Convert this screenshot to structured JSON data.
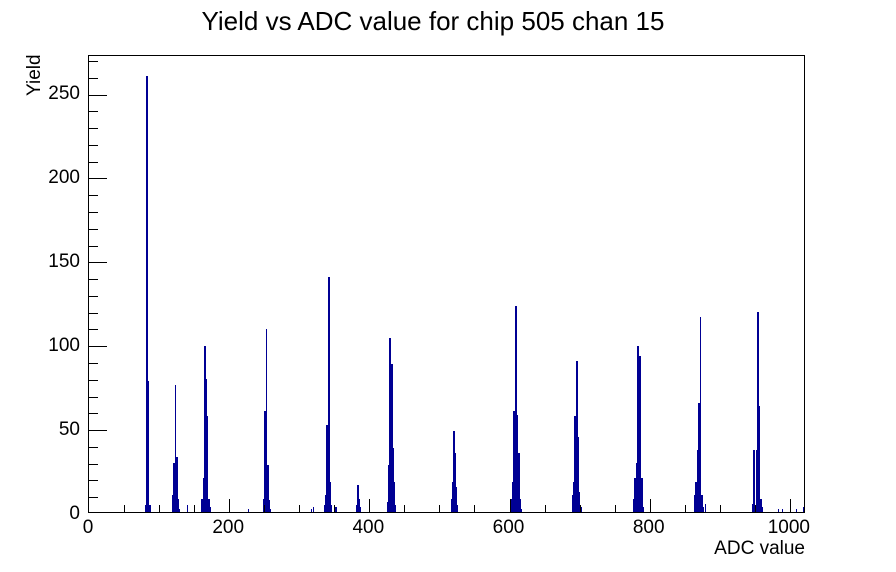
{
  "chart_data": {
    "type": "histogram",
    "title": "Yield vs ADC value for chip 505 chan 15",
    "xlabel": "ADC value",
    "ylabel": "Yield",
    "xlim": [
      0,
      1023
    ],
    "ylim": [
      0,
      273
    ],
    "x_major_ticks": [
      0,
      200,
      400,
      600,
      800,
      1000
    ],
    "x_minor_step": 50,
    "y_major_ticks": [
      0,
      50,
      100,
      150,
      200,
      250
    ],
    "y_minor_step": 10,
    "grid": false,
    "legend": "none",
    "line_color": "#000094",
    "frame_color": "#000000",
    "background_color": "#ffffff",
    "bars_format": "[adc_center, yield, width_in_adc]",
    "bars": [
      [
        80.5,
        4,
        2
      ],
      [
        82.5,
        260,
        2.5
      ],
      [
        85,
        78,
        2.5
      ],
      [
        87.3,
        4,
        2
      ],
      [
        100,
        3,
        1.5
      ],
      [
        119.5,
        10,
        2
      ],
      [
        121.5,
        29,
        2
      ],
      [
        123.3,
        76,
        2.5
      ],
      [
        125.3,
        33,
        2.2
      ],
      [
        127,
        8,
        2
      ],
      [
        128.8,
        2,
        1.5
      ],
      [
        141,
        4,
        1.5
      ],
      [
        161.5,
        8,
        2
      ],
      [
        163.2,
        20,
        2
      ],
      [
        165,
        99,
        2.5
      ],
      [
        167.2,
        79,
        2.5
      ],
      [
        169.3,
        57,
        2.2
      ],
      [
        171,
        8,
        2
      ],
      [
        172.8,
        3,
        1.5
      ],
      [
        228,
        2,
        1.5
      ],
      [
        249.5,
        8,
        2
      ],
      [
        251.3,
        60,
        2.5
      ],
      [
        253.4,
        109,
        2.5
      ],
      [
        255.5,
        28,
        2.2
      ],
      [
        257.3,
        7,
        2
      ],
      [
        259,
        2,
        1.5
      ],
      [
        317,
        2,
        1.5
      ],
      [
        320.5,
        3,
        1.5
      ],
      [
        336.5,
        4,
        2
      ],
      [
        338.2,
        10,
        2
      ],
      [
        340.1,
        52,
        2.5
      ],
      [
        342.2,
        140,
        2.5
      ],
      [
        344.4,
        18,
        2.2
      ],
      [
        346.2,
        4,
        2
      ],
      [
        352.5,
        3,
        1.8
      ],
      [
        382,
        4,
        1.8
      ],
      [
        383.8,
        16,
        2
      ],
      [
        385.6,
        8,
        2
      ],
      [
        387.4,
        3,
        1.8
      ],
      [
        426,
        6,
        2
      ],
      [
        427.9,
        28,
        2.2
      ],
      [
        429.9,
        104,
        2.5
      ],
      [
        432.1,
        88,
        2.5
      ],
      [
        434.1,
        38,
        2.2
      ],
      [
        435.9,
        18,
        2
      ],
      [
        437.7,
        4,
        1.8
      ],
      [
        517,
        8,
        2
      ],
      [
        518.8,
        18,
        2
      ],
      [
        520.7,
        48,
        2.4
      ],
      [
        522.7,
        35,
        2.2
      ],
      [
        524.5,
        15,
        2
      ],
      [
        526.2,
        4,
        1.8
      ],
      [
        603,
        8,
        2
      ],
      [
        604.8,
        18,
        2
      ],
      [
        606.8,
        60,
        2.5
      ],
      [
        609,
        123,
        2.5
      ],
      [
        611.2,
        58,
        2.5
      ],
      [
        613.3,
        35,
        2.2
      ],
      [
        615.1,
        8,
        2
      ],
      [
        616.9,
        2,
        1.5
      ],
      [
        690,
        10,
        2
      ],
      [
        691.8,
        18,
        2
      ],
      [
        693.8,
        57,
        2.5
      ],
      [
        696,
        90,
        2.5
      ],
      [
        698.2,
        45,
        2.4
      ],
      [
        700.2,
        12,
        2
      ],
      [
        702,
        3,
        1.5
      ],
      [
        777.5,
        8,
        2
      ],
      [
        779.3,
        20,
        2
      ],
      [
        781.2,
        29,
        2.2
      ],
      [
        783.2,
        99,
        2.5
      ],
      [
        785.5,
        93,
        2.8
      ],
      [
        787.7,
        20,
        2.2
      ],
      [
        789.5,
        20,
        2
      ],
      [
        791.3,
        3,
        1.5
      ],
      [
        864.5,
        10,
        2
      ],
      [
        866.3,
        18,
        2
      ],
      [
        868.2,
        37,
        2.3
      ],
      [
        870.2,
        65,
        2.5
      ],
      [
        872.4,
        116,
        2.6
      ],
      [
        874.6,
        10,
        2
      ],
      [
        876.4,
        3,
        1.5
      ],
      [
        880,
        5,
        1.8
      ],
      [
        947,
        5,
        2
      ],
      [
        949.4,
        37,
        2.8
      ],
      [
        952.1,
        37,
        2.3
      ],
      [
        954.1,
        119,
        2.5
      ],
      [
        956.4,
        63,
        2.8
      ],
      [
        958.9,
        8,
        2
      ],
      [
        960.7,
        3,
        1.5
      ],
      [
        984,
        2,
        1.5
      ],
      [
        990,
        2,
        1.5
      ],
      [
        1010,
        2,
        1.5
      ],
      [
        1019,
        3,
        1.5
      ]
    ]
  }
}
